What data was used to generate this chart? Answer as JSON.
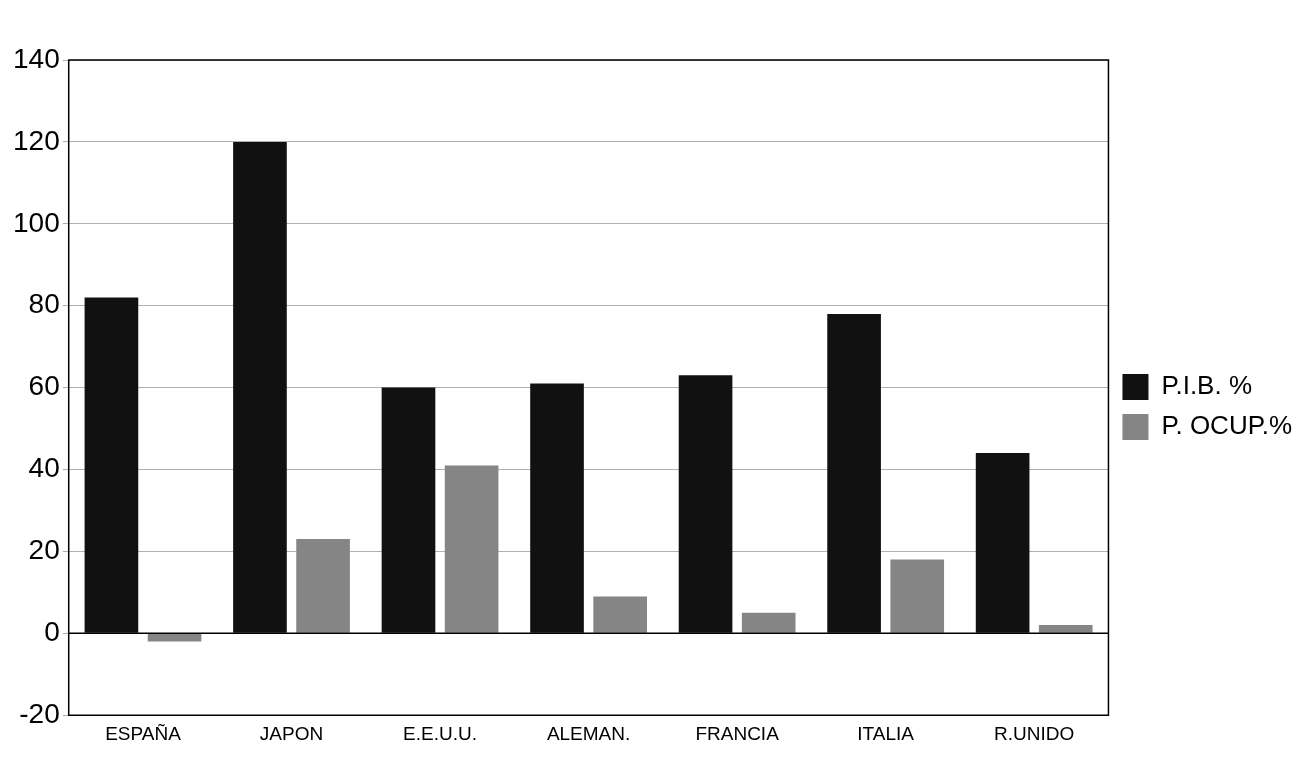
{
  "chart_data": {
    "type": "bar",
    "categories": [
      "ESPAÑA",
      "JAPON",
      "E.E.U.U.",
      "ALEMAN.",
      "FRANCIA",
      "ITALIA",
      "R.UNIDO"
    ],
    "series": [
      {
        "name": "P.I.B. %",
        "color": "#111111",
        "values": [
          82,
          120,
          60,
          61,
          63,
          78,
          44
        ]
      },
      {
        "name": "P. OCUP.%",
        "color": "#858585",
        "values": [
          -2,
          23,
          41,
          9,
          5,
          18,
          2
        ]
      }
    ],
    "ylim": [
      -20,
      140
    ],
    "yticks": [
      -20,
      0,
      20,
      40,
      60,
      80,
      100,
      120,
      140
    ],
    "grid": "y",
    "legend": "right"
  }
}
